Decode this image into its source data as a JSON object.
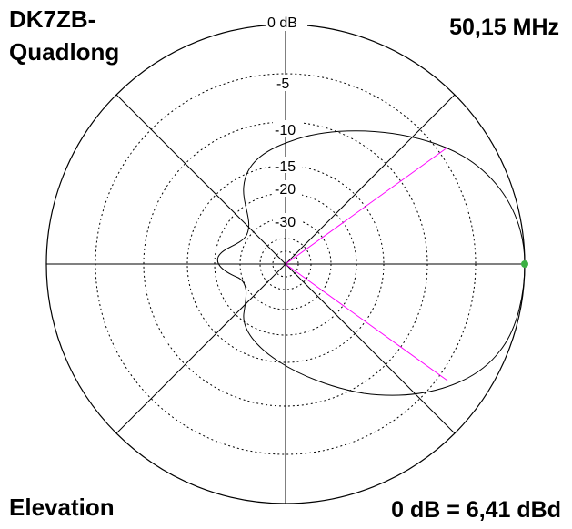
{
  "header": {
    "antenna_name_line1": "DK7ZB-",
    "antenna_name_line2": "Quadlong",
    "frequency": "50,15 MHz"
  },
  "footer": {
    "plane": "Elevation",
    "reference": "0 dB = 6,41 dBd"
  },
  "ring_labels": [
    "0 dB",
    "-5",
    "-10",
    "-15",
    "-20",
    "-30"
  ],
  "colors": {
    "pattern": "#000000",
    "beamwidth_lines": "#ff00ff",
    "max_marker": "#3cb043",
    "grid": "#000000"
  }
}
